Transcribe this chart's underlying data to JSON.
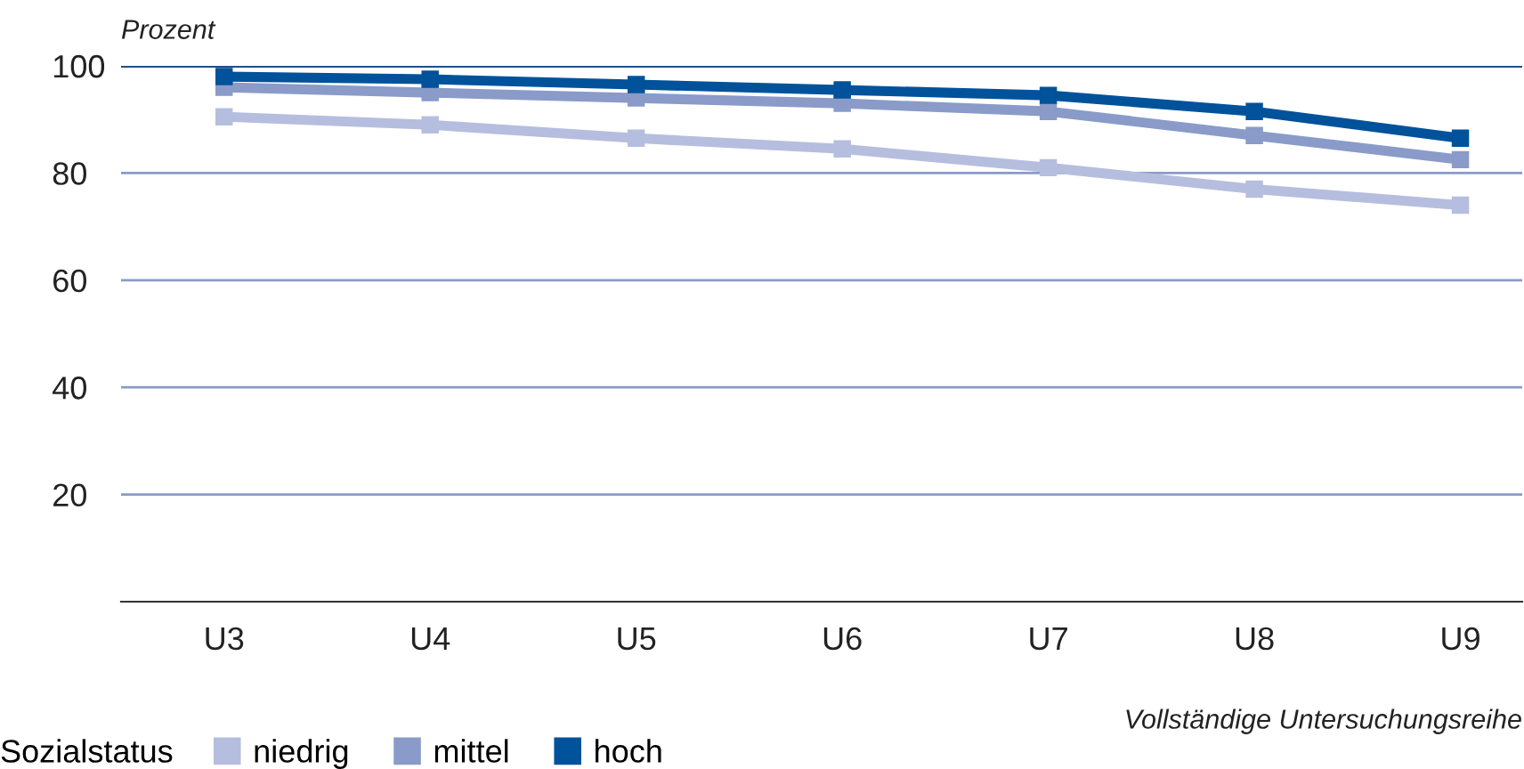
{
  "chart_data": {
    "type": "line",
    "ylabel": "Prozent",
    "xlabel": "Vollständige Untersuchungsreihe",
    "legend_title": "Sozialstatus",
    "categories": [
      "U3",
      "U4",
      "U5",
      "U6",
      "U7",
      "U8",
      "U9"
    ],
    "series": [
      {
        "name": "niedrig",
        "color": "#b6bedf",
        "values": [
          90.5,
          89,
          86.5,
          84.5,
          81,
          77,
          74
        ]
      },
      {
        "name": "mittel",
        "color": "#8a9bc9",
        "values": [
          96,
          95,
          94,
          93,
          91.5,
          87,
          82.5
        ]
      },
      {
        "name": "hoch",
        "color": "#00529b",
        "values": [
          98,
          97.5,
          96.5,
          95.5,
          94.5,
          91.5,
          86.5
        ]
      }
    ],
    "ylim": [
      0,
      100
    ],
    "yticks": [
      20,
      40,
      60,
      80,
      100
    ],
    "grid": "y",
    "legend": "bottom left",
    "marker": "square",
    "line_style": "solid"
  }
}
